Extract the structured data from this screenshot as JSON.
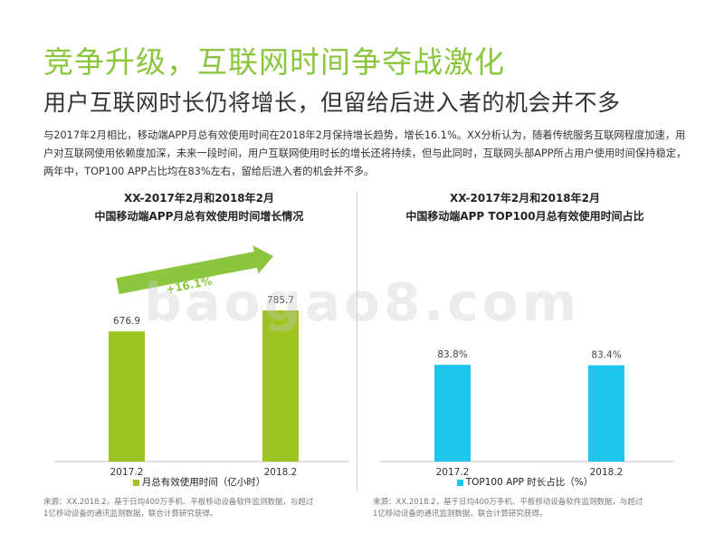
{
  "page": {
    "title": "竞争升级，互联网时间争夺战激化",
    "subtitle": "用户互联网时长仍将增长，但留给后进入者的机会并不多",
    "body": "与2017年2月相比，移动端APP月总有效使用时间在2018年2月保持增长趋势，增长16.1%。XX分析认为，随着传统服务互联网程度加速，用户对互联网使用依赖度加深，未来一段时间，用户互联网使用时长的增长还将持续，但与此同时，互联网头部APP所占用户使用时间保持稳定，两年中，TOP100 APP占比均在83%左右，留给后进入者的机会并不多。",
    "watermark": "baogao8.com"
  },
  "colors": {
    "title": "#8cc63f",
    "bar_left": "#9dc41f",
    "bar_right": "#1ec6ee",
    "arrow": "#8cc63f"
  },
  "left_chart": {
    "title_line1": "XX-2017年2月和2018年2月",
    "title_line2": "中国移动端APP月总有效使用时间增长情况",
    "growth_label": "+16.1%",
    "legend": "月总有效使用时间（亿小时）",
    "source": "来源：XX.2018.2，基于日均400万手机、平板移动设备软件监测数据，与超过1亿移动设备的通讯监测数据，联合计算研究获得。"
  },
  "right_chart": {
    "title_line1": "XX-2017年2月和2018年2月",
    "title_line2": "中国移动端APP TOP100月总有效使用时间占比",
    "legend": "TOP100 APP 时长占比（%）",
    "source": "来源：XX.2018.2，基于日均400万手机、平板移动设备软件监测数据，与超过1亿移动设备的通讯监测数据，联合计算研究获得。"
  },
  "chart_data": [
    {
      "type": "bar",
      "title": "XX-2017年2月和2018年2月 中国移动端APP月总有效使用时间增长情况",
      "categories": [
        "2017.2",
        "2018.2"
      ],
      "series": [
        {
          "name": "月总有效使用时间（亿小时）",
          "values": [
            676.9,
            785.7
          ]
        }
      ],
      "value_labels": [
        "676.9",
        "785.7"
      ],
      "annotation": "+16.1%",
      "ylim": [
        0,
        1200
      ],
      "grid": false,
      "legend_position": "bottom"
    },
    {
      "type": "bar",
      "title": "XX-2017年2月和2018年2月 中国移动端APP TOP100月总有效使用时间占比",
      "categories": [
        "2017.2",
        "2018.2"
      ],
      "series": [
        {
          "name": "TOP100 APP 时长占比（%）",
          "values": [
            83.8,
            83.4
          ]
        }
      ],
      "value_labels": [
        "83.8%",
        "83.4%"
      ],
      "ylim": [
        0,
        200
      ],
      "grid": false,
      "legend_position": "bottom"
    }
  ]
}
